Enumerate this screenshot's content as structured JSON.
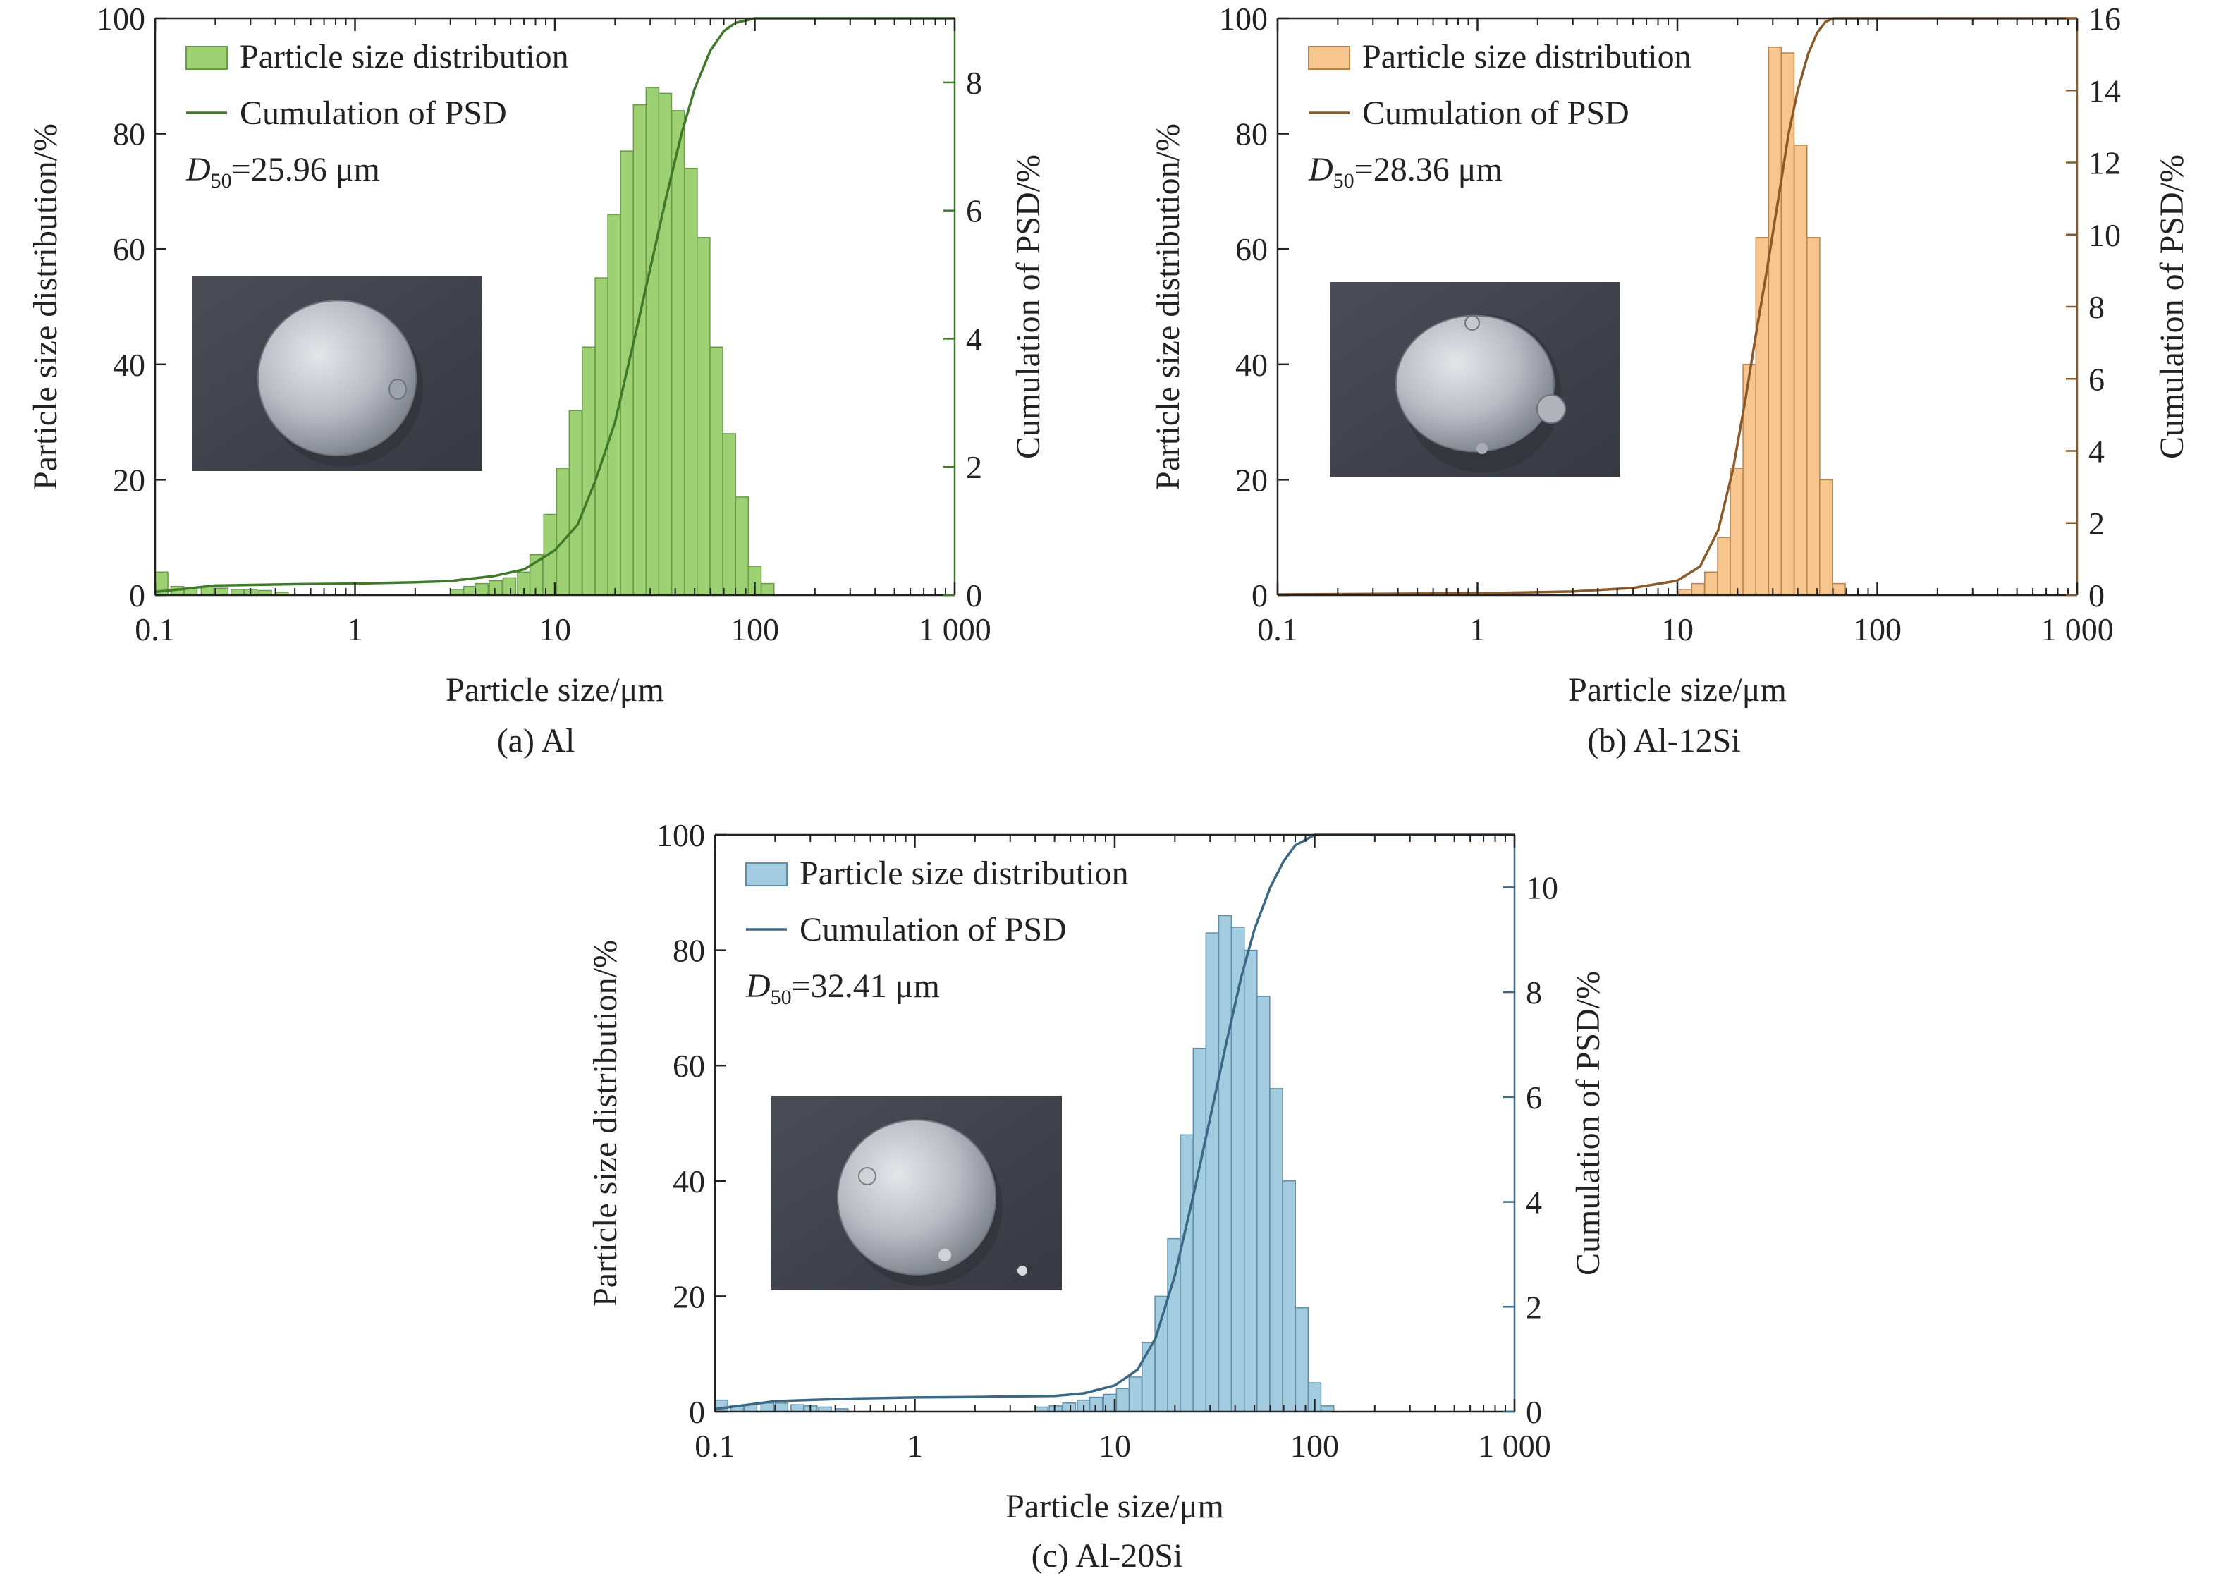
{
  "chart_data": [
    {
      "type": "bar",
      "caption": "(a) Al",
      "color": "#9ed174",
      "edge_color": "#6a9a47",
      "curve_color": "#3f7a2a",
      "right_axis_color": "#3f7a2a",
      "xlabel": "Particle size/μm",
      "ylabel": "Particle size distribution/%",
      "y2label": "Cumulation of PSD/%",
      "xscale": "log",
      "xlim": [
        0.1,
        1000
      ],
      "xticks": [
        0.1,
        1,
        10,
        100,
        1000
      ],
      "xtick_labels": [
        "0.1",
        "1",
        "10",
        "100",
        "1 000"
      ],
      "ylim": [
        0,
        100
      ],
      "yticks": [
        0,
        20,
        40,
        60,
        80,
        100
      ],
      "y2lim": [
        0,
        9
      ],
      "y2ticks": [
        0,
        2,
        4,
        6,
        8
      ],
      "legend": {
        "position": "top-left",
        "bar_label": "Particle size distribution",
        "line_label": "Cumulation of PSD"
      },
      "annotation": {
        "symbol": "D",
        "subscript": "50",
        "value": "=25.96 μm"
      },
      "bars": {
        "x": [
          0.1,
          0.12,
          0.14,
          0.17,
          0.2,
          0.24,
          0.28,
          0.33,
          0.4,
          3,
          3.5,
          4,
          4.7,
          5.5,
          6.5,
          7.5,
          8.8,
          10.2,
          11.8,
          13.7,
          15.9,
          18.4,
          21.3,
          24.7,
          28.6,
          33.1,
          38.4,
          44.5,
          51.5,
          59.7,
          69.2,
          80.2,
          92.9,
          107.7
        ],
        "values": [
          4,
          1.5,
          1.2,
          1.5,
          1.2,
          1,
          1,
          0.8,
          0.5,
          1,
          1.5,
          2,
          2.5,
          3,
          4,
          7,
          14,
          22,
          32,
          43,
          55,
          66,
          77,
          85,
          88,
          87,
          84,
          74,
          62,
          43,
          28,
          17,
          5,
          2
        ]
      },
      "cumulative": {
        "x": [
          0.1,
          0.2,
          0.5,
          1,
          2,
          3,
          5,
          7,
          10,
          13,
          16,
          20,
          25,
          30,
          36,
          43,
          50,
          60,
          70,
          80,
          100,
          120,
          1000
        ],
        "values": [
          0.05,
          0.15,
          0.17,
          0.18,
          0.2,
          0.22,
          0.3,
          0.4,
          0.7,
          1.1,
          1.8,
          2.7,
          4,
          5.1,
          6.2,
          7.2,
          7.9,
          8.5,
          8.8,
          8.93,
          9,
          9,
          9
        ]
      },
      "inset": "SEM image of Al particle"
    },
    {
      "type": "bar",
      "caption": "(b) Al-12Si",
      "color": "#f7c58e",
      "edge_color": "#b5834e",
      "curve_color": "#8b5a2b",
      "right_axis_color": "#8b5a2b",
      "xlabel": "Particle size/μm",
      "ylabel": "Particle size distribution/%",
      "y2label": "Cumulation of PSD/%",
      "xscale": "log",
      "xlim": [
        0.1,
        1000
      ],
      "xticks": [
        0.1,
        1,
        10,
        100,
        1000
      ],
      "xtick_labels": [
        "0.1",
        "1",
        "10",
        "100",
        "1 000"
      ],
      "ylim": [
        0,
        100
      ],
      "yticks": [
        0,
        20,
        40,
        60,
        80,
        100
      ],
      "y2lim": [
        0,
        16
      ],
      "y2ticks": [
        0,
        2,
        4,
        6,
        8,
        10,
        12,
        14,
        16
      ],
      "legend": {
        "position": "top-left",
        "bar_label": "Particle size distribution",
        "line_label": "Cumulation of PSD"
      },
      "annotation": {
        "symbol": "D",
        "subscript": "50",
        "value": "=28.36 μm"
      },
      "bars": {
        "x": [
          10.2,
          11.8,
          13.7,
          15.9,
          18.4,
          21.3,
          24.7,
          28.6,
          33.1,
          38.4,
          44.5,
          51.5,
          59.7
        ],
        "values": [
          1,
          2,
          4,
          10,
          22,
          40,
          62,
          95,
          94,
          78,
          62,
          20,
          2
        ]
      },
      "cumulative": {
        "x": [
          0.1,
          1,
          3,
          6,
          10,
          13,
          16,
          19,
          22,
          25,
          28,
          32,
          36,
          40,
          45,
          50,
          55,
          60,
          70,
          1000
        ],
        "values": [
          0.02,
          0.05,
          0.1,
          0.2,
          0.4,
          0.8,
          1.8,
          3.5,
          5.5,
          7.4,
          9,
          11,
          12.8,
          14,
          15,
          15.6,
          15.9,
          16,
          16,
          16
        ]
      },
      "inset": "SEM image of Al-12Si particle"
    },
    {
      "type": "bar",
      "caption": "(c) Al-20Si",
      "color": "#a3cce0",
      "edge_color": "#5f8fa8",
      "curve_color": "#3c6887",
      "right_axis_color": "#3c6887",
      "xlabel": "Particle size/μm",
      "ylabel": "Particle size distribution/%",
      "y2label": "Cumulation of PSD/%",
      "xscale": "log",
      "xlim": [
        0.1,
        1000
      ],
      "xticks": [
        0.1,
        1,
        10,
        100,
        1000
      ],
      "xtick_labels": [
        "0.1",
        "1",
        "10",
        "100",
        "1 000"
      ],
      "ylim": [
        0,
        100
      ],
      "yticks": [
        0,
        20,
        40,
        60,
        80,
        100
      ],
      "y2lim": [
        0,
        11
      ],
      "y2ticks": [
        0,
        2,
        4,
        6,
        8,
        10
      ],
      "legend": {
        "position": "top-left",
        "bar_label": "Particle size distribution",
        "line_label": "Cumulation of PSD"
      },
      "annotation": {
        "symbol": "D",
        "subscript": "50",
        "value": "=32.41 μm"
      },
      "bars": {
        "x": [
          0.1,
          0.12,
          0.14,
          0.17,
          0.2,
          0.24,
          0.28,
          0.33,
          0.4,
          4,
          4.7,
          5.5,
          6.5,
          7.5,
          8.8,
          10.2,
          11.8,
          13.7,
          15.9,
          18.4,
          21.3,
          24.7,
          28.6,
          33.1,
          38.4,
          44.5,
          51.5,
          59.7,
          69.2,
          80.2,
          92.9,
          107.7
        ],
        "values": [
          2,
          1,
          1.2,
          1.5,
          1.5,
          1.2,
          1,
          0.8,
          0.5,
          0.8,
          1,
          1.5,
          2,
          2.5,
          3,
          4,
          6,
          12,
          20,
          30,
          48,
          63,
          83,
          86,
          84,
          80,
          72,
          56,
          40,
          18,
          5,
          1
        ]
      },
      "cumulative": {
        "x": [
          0.1,
          0.2,
          0.5,
          1,
          2,
          3,
          5,
          7,
          10,
          13,
          16,
          20,
          25,
          30,
          36,
          43,
          50,
          60,
          70,
          80,
          100,
          120,
          1000
        ],
        "values": [
          0.05,
          0.2,
          0.25,
          0.27,
          0.28,
          0.29,
          0.3,
          0.35,
          0.5,
          0.8,
          1.4,
          2.6,
          4.2,
          5.6,
          7,
          8.3,
          9.2,
          10,
          10.5,
          10.8,
          11,
          11,
          11
        ]
      },
      "inset": "SEM image of Al-20Si particle"
    }
  ]
}
